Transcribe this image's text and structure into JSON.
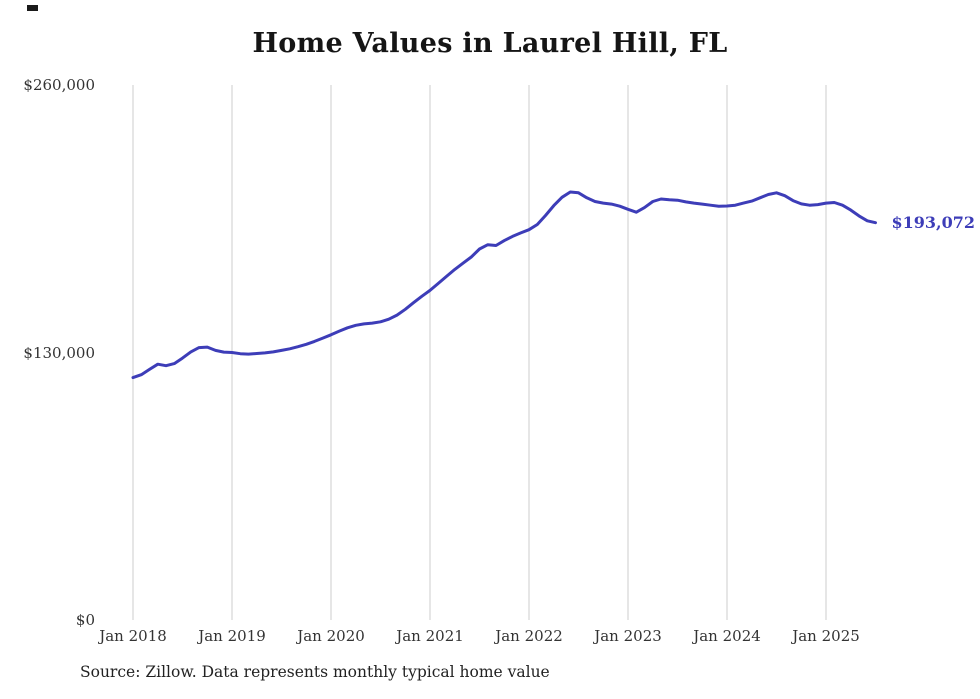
{
  "title": "Home Values in Laurel Hill, FL",
  "source_note": "Source: Zillow. Data represents monthly typical home value",
  "end_label": "$193,072",
  "colors": {
    "line": "#3d3db8",
    "end_label": "#3d3db8",
    "grid": "#cccccc",
    "axis_text": "#333333",
    "title_text": "#151515"
  },
  "chart_data": {
    "type": "line",
    "title": "Home Values in Laurel Hill, FL",
    "frequency": "monthly",
    "x_range": [
      "2018-01",
      "2025-07"
    ],
    "xlabel": "",
    "ylabel": "",
    "ylim": [
      0,
      260000
    ],
    "y_ticks": [
      0,
      130000,
      260000
    ],
    "y_tick_labels": [
      "$0",
      "$130,000",
      "$260,000"
    ],
    "x_tick_labels": [
      "Jan 2018",
      "Jan 2019",
      "Jan 2020",
      "Jan 2021",
      "Jan 2022",
      "Jan 2023",
      "Jan 2024",
      "Jan 2025"
    ],
    "grid": "vertical-only",
    "legend": "none",
    "end_value": 193072,
    "series": [
      {
        "name": "Typical home value",
        "values": [
          117800,
          119200,
          121800,
          124300,
          123600,
          124600,
          127300,
          130300,
          132400,
          132600,
          131000,
          130200,
          130000,
          129400,
          129200,
          129500,
          129800,
          130300,
          131000,
          131800,
          132800,
          134000,
          135400,
          137000,
          138600,
          140400,
          142000,
          143200,
          143900,
          144300,
          144900,
          146200,
          148200,
          151000,
          154200,
          157300,
          160200,
          163600,
          167000,
          170400,
          173400,
          176400,
          180300,
          182400,
          182000,
          184400,
          186400,
          188100,
          189700,
          192200,
          196600,
          201400,
          205400,
          208000,
          207600,
          205200,
          203400,
          202600,
          202100,
          201100,
          199600,
          198200,
          200400,
          203400,
          204600,
          204200,
          204000,
          203200,
          202600,
          202100,
          201600,
          201100,
          201200,
          201600,
          202600,
          203600,
          205200,
          206800,
          207600,
          206200,
          203800,
          202200,
          201600,
          201900,
          202600,
          202900,
          201600,
          199200,
          196400,
          194000,
          193072
        ]
      }
    ]
  }
}
